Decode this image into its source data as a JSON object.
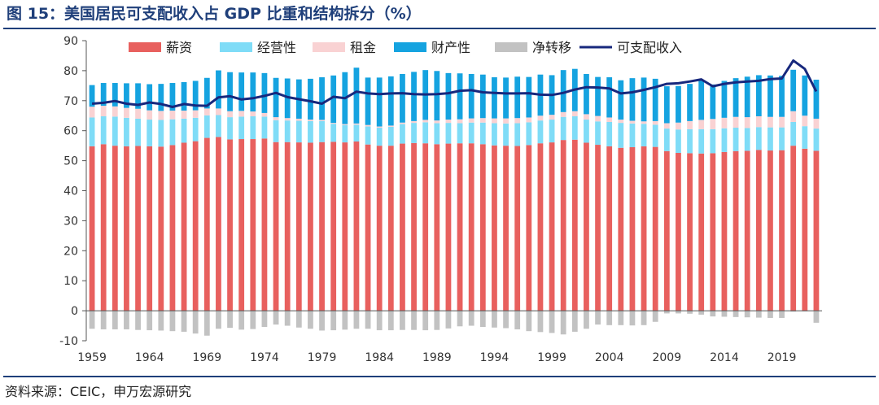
{
  "header": {
    "title": "图 15：美国居民可支配收入占 GDP 比重和结构拆分（%）"
  },
  "footer": {
    "source": "资料来源：CEIC，申万宏源研究"
  },
  "colors": {
    "wages": "#e8605e",
    "business": "#7fdcf7",
    "rent": "#f9d2d3",
    "property": "#15a3e0",
    "transfers": "#c2c2c2",
    "disposable": "#17287d",
    "axis": "#333333",
    "brand": "#1f3f7a"
  },
  "chart_data": {
    "type": "bar",
    "subtype": "stacked-bar-with-line",
    "title": "",
    "xlabel": "",
    "ylabel": "",
    "ylim": [
      -10,
      90
    ],
    "yticks": [
      -10,
      0,
      10,
      20,
      30,
      40,
      50,
      60,
      70,
      80,
      90
    ],
    "x_tick_labels": [
      "1959",
      "1964",
      "1969",
      "1974",
      "1979",
      "1984",
      "1989",
      "1994",
      "1999",
      "2004",
      "2009",
      "2014",
      "2019"
    ],
    "grid": false,
    "legend_position": "top",
    "x": [
      1959,
      1960,
      1961,
      1962,
      1963,
      1964,
      1965,
      1966,
      1967,
      1968,
      1969,
      1970,
      1971,
      1972,
      1973,
      1974,
      1975,
      1976,
      1977,
      1978,
      1979,
      1980,
      1981,
      1982,
      1983,
      1984,
      1985,
      1986,
      1987,
      1988,
      1989,
      1990,
      1991,
      1992,
      1993,
      1994,
      1995,
      1996,
      1997,
      1998,
      1999,
      2000,
      2001,
      2002,
      2003,
      2004,
      2005,
      2006,
      2007,
      2008,
      2009,
      2010,
      2011,
      2012,
      2013,
      2014,
      2015,
      2016,
      2017,
      2018,
      2019,
      2020,
      2021,
      2022
    ],
    "series": [
      {
        "name": "薪资",
        "type": "bar",
        "color_key": "wages",
        "values": [
          54.8,
          55.5,
          55.0,
          54.8,
          54.9,
          54.8,
          54.7,
          55.2,
          56.0,
          56.5,
          57.6,
          57.9,
          57.1,
          57.2,
          57.2,
          57.4,
          56.2,
          56.2,
          56.1,
          56.0,
          56.2,
          56.3,
          56.1,
          56.4,
          55.4,
          55.0,
          55.0,
          55.7,
          55.9,
          55.8,
          55.5,
          55.7,
          55.8,
          55.8,
          55.5,
          55.1,
          55.0,
          54.9,
          55.2,
          55.8,
          56.1,
          56.9,
          57.0,
          56.0,
          55.3,
          54.8,
          54.3,
          54.5,
          54.8,
          54.6,
          53.2,
          52.6,
          52.5,
          52.4,
          52.5,
          52.9,
          53.2,
          53.3,
          53.6,
          53.4,
          53.5,
          55.0,
          54.0,
          53.3
        ]
      },
      {
        "name": "经营性",
        "type": "bar",
        "color_key": "business",
        "values": [
          9.6,
          9.3,
          9.7,
          9.5,
          9.1,
          8.9,
          8.9,
          8.6,
          8.0,
          7.8,
          7.5,
          7.3,
          7.4,
          7.5,
          7.6,
          7.3,
          7.3,
          7.2,
          7.2,
          7.2,
          7.0,
          6.0,
          5.8,
          5.6,
          6.0,
          6.0,
          6.3,
          6.5,
          6.7,
          7.0,
          7.0,
          6.9,
          6.7,
          6.9,
          7.2,
          7.4,
          7.4,
          7.6,
          7.6,
          7.6,
          7.6,
          7.7,
          7.8,
          7.7,
          7.8,
          8.1,
          8.3,
          7.9,
          7.5,
          7.4,
          7.5,
          7.8,
          8.0,
          8.1,
          8.0,
          7.9,
          7.8,
          7.6,
          7.6,
          7.7,
          7.6,
          7.9,
          7.5,
          7.4
        ]
      },
      {
        "name": "租金",
        "type": "bar",
        "color_key": "rent",
        "values": [
          3.6,
          3.5,
          3.4,
          3.3,
          3.3,
          3.1,
          3.0,
          2.9,
          2.7,
          2.5,
          2.3,
          2.2,
          2.0,
          1.9,
          1.6,
          1.2,
          1.0,
          0.8,
          0.7,
          0.5,
          0.4,
          0.3,
          0.3,
          0.4,
          0.5,
          0.4,
          0.4,
          0.5,
          0.6,
          0.8,
          0.9,
          1.1,
          1.3,
          1.4,
          1.5,
          1.6,
          1.7,
          1.7,
          1.6,
          1.6,
          1.6,
          1.6,
          1.7,
          1.8,
          1.8,
          1.5,
          1.1,
          0.9,
          0.8,
          1.2,
          1.8,
          2.3,
          2.7,
          3.1,
          3.4,
          3.5,
          3.6,
          3.6,
          3.6,
          3.5,
          3.5,
          3.6,
          3.5,
          3.3
        ]
      },
      {
        "name": "财产性",
        "type": "bar",
        "color_key": "property",
        "values": [
          7.2,
          7.6,
          7.8,
          8.2,
          8.5,
          8.7,
          9.0,
          9.2,
          9.5,
          9.8,
          10.2,
          12.7,
          13.0,
          12.8,
          13.0,
          13.3,
          13.1,
          13.2,
          13.1,
          13.6,
          14.2,
          15.8,
          17.3,
          18.6,
          15.8,
          16.3,
          16.4,
          16.2,
          16.4,
          16.6,
          16.5,
          15.5,
          15.3,
          14.8,
          14.5,
          13.7,
          13.6,
          13.8,
          13.5,
          13.7,
          13.2,
          14.0,
          14.1,
          13.4,
          13.0,
          13.4,
          13.1,
          14.2,
          14.6,
          14.1,
          12.3,
          12.2,
          12.4,
          13.3,
          11.5,
          12.3,
          12.9,
          13.5,
          13.7,
          13.8,
          13.7,
          13.8,
          13.4,
          13.0
        ]
      },
      {
        "name": "净转移",
        "type": "bar",
        "color_key": "transfers",
        "values": [
          -6.0,
          -6.2,
          -6.2,
          -6.2,
          -6.4,
          -6.5,
          -6.6,
          -6.8,
          -7.0,
          -7.6,
          -8.3,
          -6.0,
          -5.7,
          -6.3,
          -6.1,
          -5.4,
          -4.6,
          -5.0,
          -5.6,
          -6.0,
          -6.6,
          -6.5,
          -6.3,
          -6.0,
          -6.0,
          -6.5,
          -6.5,
          -6.4,
          -6.4,
          -6.5,
          -6.4,
          -5.9,
          -5.2,
          -5.0,
          -5.4,
          -5.6,
          -5.8,
          -6.2,
          -6.8,
          -7.1,
          -7.4,
          -7.9,
          -7.0,
          -6.0,
          -4.6,
          -4.8,
          -4.8,
          -4.9,
          -4.8,
          -3.7,
          -0.9,
          -0.9,
          -1.0,
          -1.3,
          -1.9,
          -2.0,
          -2.1,
          -2.2,
          -2.3,
          -2.4,
          -2.4,
          -0.3,
          -0.2,
          -4.0
        ]
      },
      {
        "name": "可支配收入",
        "type": "line",
        "color_key": "disposable",
        "values": [
          69.0,
          69.3,
          69.9,
          69.0,
          68.6,
          69.4,
          68.9,
          67.9,
          68.9,
          68.4,
          68.3,
          71.1,
          71.5,
          70.4,
          70.8,
          71.6,
          72.6,
          71.2,
          70.5,
          69.8,
          69.0,
          71.3,
          70.8,
          73.0,
          72.4,
          72.2,
          72.4,
          72.5,
          72.2,
          72.1,
          72.2,
          72.5,
          73.3,
          73.5,
          72.8,
          72.6,
          72.4,
          72.4,
          72.5,
          72.0,
          71.9,
          72.6,
          73.7,
          74.5,
          74.4,
          74.1,
          72.4,
          72.8,
          73.6,
          74.5,
          75.6,
          75.8,
          76.4,
          77.1,
          74.8,
          75.6,
          76.1,
          76.4,
          76.6,
          77.2,
          77.4,
          83.4,
          80.6,
          73.1
        ]
      }
    ]
  }
}
